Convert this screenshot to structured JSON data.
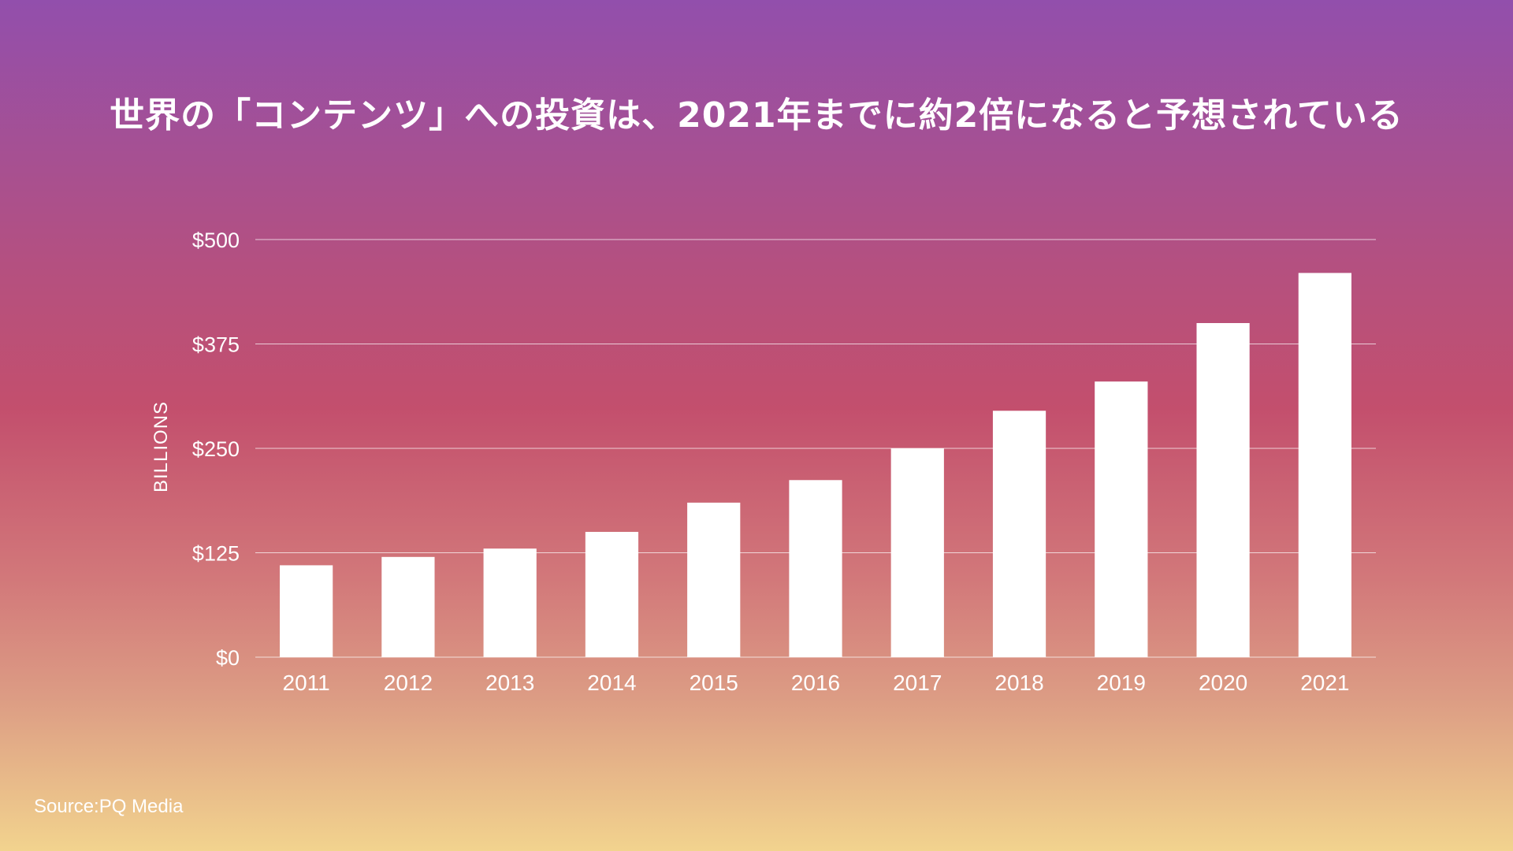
{
  "title": "世界の「コンテンツ」への投資は、2021年までに約2倍になると予想されている",
  "source": "Source:PQ Media",
  "colors": {
    "bar": "#ffffff",
    "gradient_top": "#924fac",
    "gradient_mid": "#c34f6d",
    "gradient_bottom": "#f2d38e"
  },
  "chart_data": {
    "type": "bar",
    "title": "世界の「コンテンツ」への投資は、2021年までに約2倍になると予想されている",
    "xlabel": "",
    "ylabel": "BILLIONS",
    "categories": [
      "2011",
      "2012",
      "2013",
      "2014",
      "2015",
      "2016",
      "2017",
      "2018",
      "2019",
      "2020",
      "2021"
    ],
    "values": [
      110,
      120,
      130,
      150,
      185,
      212,
      250,
      295,
      330,
      400,
      460
    ],
    "ylim": [
      0,
      500
    ],
    "yticks": [
      0,
      125,
      250,
      375,
      500
    ],
    "ytick_labels": [
      "$0",
      "$125",
      "$250",
      "$375",
      "$500"
    ],
    "grid": true,
    "legend": "none"
  }
}
